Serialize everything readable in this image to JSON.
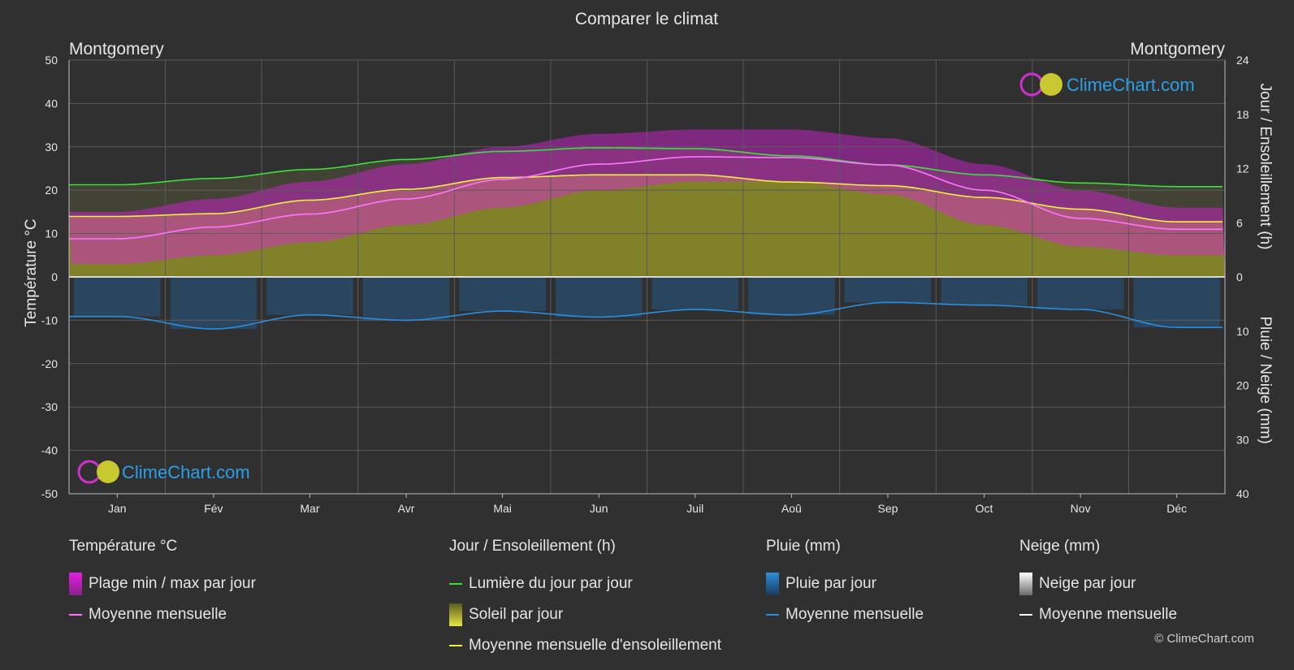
{
  "title": "Comparer le climat",
  "location_left": "Montgomery",
  "location_right": "Montgomery",
  "brand": "ClimeChart.com",
  "copyright": "© ClimeChart.com",
  "colors": {
    "background": "#303030",
    "temp_range": "#e020e0",
    "temp_avg": "#ff77ff",
    "daylight": "#3ee03e",
    "sunshine_fill": "#8c8c28",
    "sunshine_avg": "#f0f040",
    "rain": "#1e6fb4",
    "rain_avg": "#2a8ee0",
    "snow_avg": "#ffffff",
    "grid": "#5a5a5a",
    "brand": "#2aa0e8"
  },
  "legend": {
    "temp": {
      "heading": "Température °C",
      "range": "Plage min / max par jour",
      "avg": "Moyenne mensuelle"
    },
    "sun": {
      "heading": "Jour / Ensoleillement (h)",
      "daylight": "Lumière du jour par jour",
      "sunshine": "Soleil par jour",
      "avg": "Moyenne mensuelle d'ensoleillement"
    },
    "rain": {
      "heading": "Pluie (mm)",
      "daily": "Pluie par jour",
      "avg": "Moyenne mensuelle"
    },
    "snow": {
      "heading": "Neige (mm)",
      "daily": "Neige par jour",
      "avg": "Moyenne mensuelle"
    }
  },
  "chart_data": {
    "type": "area",
    "categories": [
      "Jan",
      "Fév",
      "Mar",
      "Avr",
      "Mai",
      "Jun",
      "Juil",
      "Aoû",
      "Sep",
      "Oct",
      "Nov",
      "Déc"
    ],
    "y_left": {
      "label": "Température °C",
      "range": [
        -50,
        50
      ],
      "ticks": [
        50,
        40,
        30,
        20,
        10,
        0,
        -10,
        -20,
        -30,
        -40,
        -50
      ]
    },
    "y_right_top": {
      "label": "Jour / Ensoleillement (h)",
      "range": [
        0,
        24
      ],
      "ticks": [
        24,
        18,
        12,
        6,
        0
      ]
    },
    "y_right_bottom": {
      "label": "Pluie / Neige (mm)",
      "range": [
        0,
        40
      ],
      "ticks": [
        0,
        10,
        20,
        30,
        40
      ]
    },
    "grid": true,
    "series": [
      {
        "name": "Plage min / max par jour",
        "axis": "temperature",
        "min": [
          3,
          5,
          8,
          12,
          16,
          20,
          22,
          22,
          19,
          12,
          7,
          5
        ],
        "max": [
          15,
          18,
          22,
          26,
          30,
          33,
          34,
          34,
          32,
          26,
          20,
          16
        ]
      },
      {
        "name": "Moyenne mensuelle",
        "axis": "temperature",
        "values": [
          8.8,
          11.5,
          14.5,
          18.0,
          22.5,
          26.0,
          27.7,
          27.5,
          25.8,
          20.0,
          13.5,
          11.0
        ]
      },
      {
        "name": "Lumière du jour par jour",
        "axis": "hours",
        "values": [
          10.2,
          10.9,
          11.9,
          13.0,
          13.9,
          14.3,
          14.2,
          13.4,
          12.4,
          11.3,
          10.4,
          10.0
        ]
      },
      {
        "name": "Moyenne mensuelle d'ensoleillement",
        "axis": "hours",
        "values": [
          6.7,
          7.0,
          8.5,
          9.7,
          11.0,
          11.3,
          11.3,
          10.5,
          10.1,
          8.8,
          7.5,
          6.1
        ]
      },
      {
        "name": "Pluie : Moyenne mensuelle",
        "axis": "precipitation",
        "values": [
          7.3,
          9.6,
          7.0,
          8.0,
          6.3,
          7.4,
          6.0,
          7.0,
          4.7,
          5.2,
          6.0,
          9.3
        ]
      },
      {
        "name": "Neige : Moyenne mensuelle",
        "axis": "precipitation",
        "values": [
          0,
          0,
          0,
          0,
          0,
          0,
          0,
          0,
          0,
          0,
          0,
          0
        ]
      }
    ]
  }
}
